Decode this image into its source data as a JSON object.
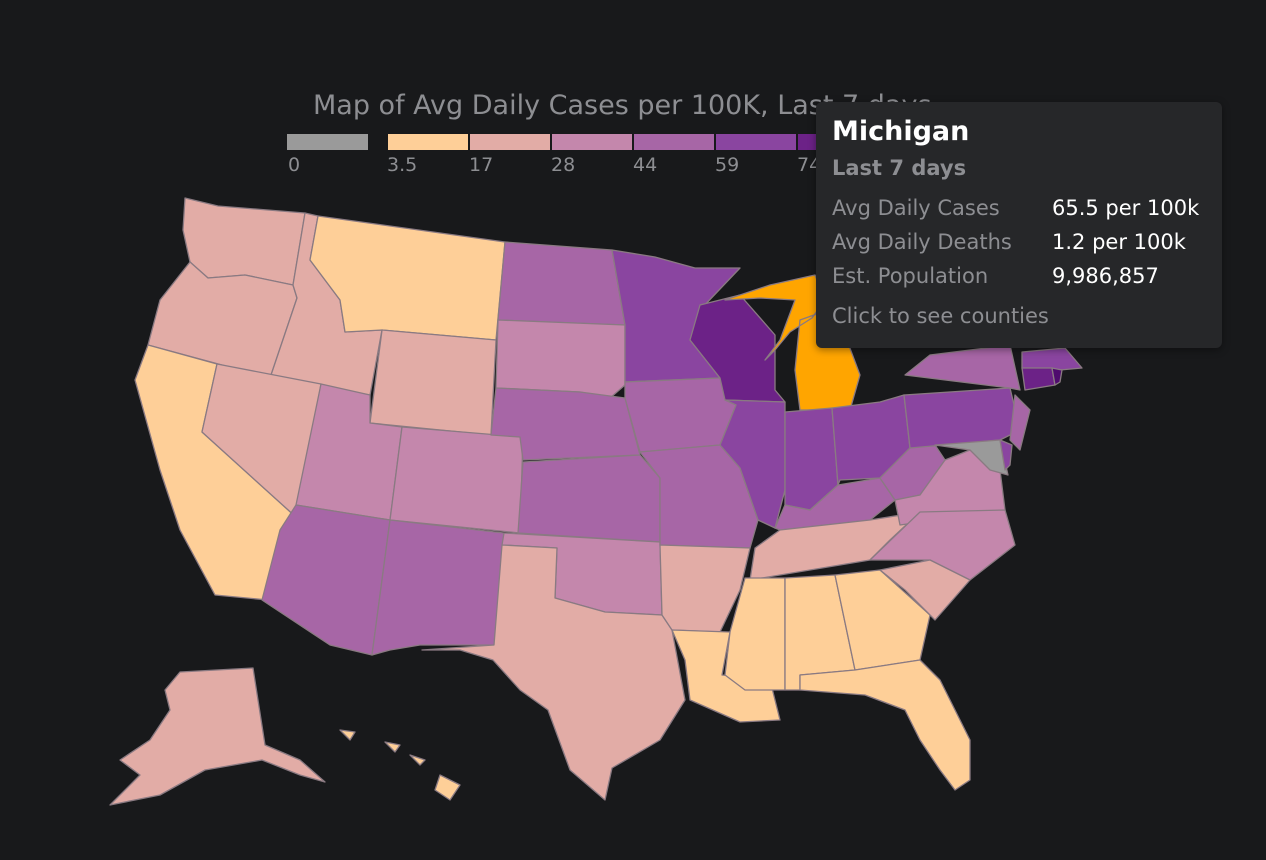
{
  "title": "Map of Avg Daily Cases per 100K, Last 7 days",
  "legend": {
    "ticks": [
      "0",
      "3.5",
      "17",
      "28",
      "44",
      "59",
      "74"
    ],
    "colors": [
      "#9a9a9a",
      "#fecf98",
      "#e2aca6",
      "#c487ac",
      "#a766a6",
      "#8a45a0",
      "#6c2287"
    ]
  },
  "colors": {
    "background": "#18191b",
    "no_data": "#9a9a9a",
    "highlight": "#ffa500",
    "c1": "#fecf98",
    "c2": "#e2aca6",
    "c3": "#c487ac",
    "c4": "#a766a6",
    "c5": "#8a45a0",
    "c6": "#6c2287",
    "c7": "#4f0b6e"
  },
  "tooltip": {
    "state": "Michigan",
    "period": "Last 7 days",
    "rows": [
      {
        "label": "Avg Daily Cases",
        "value": "65.5 per 100k"
      },
      {
        "label": "Avg Daily Deaths",
        "value": "1.2 per 100k"
      },
      {
        "label": "Est. Population",
        "value": "9,986,857"
      }
    ],
    "cta": "Click to see counties"
  }
}
